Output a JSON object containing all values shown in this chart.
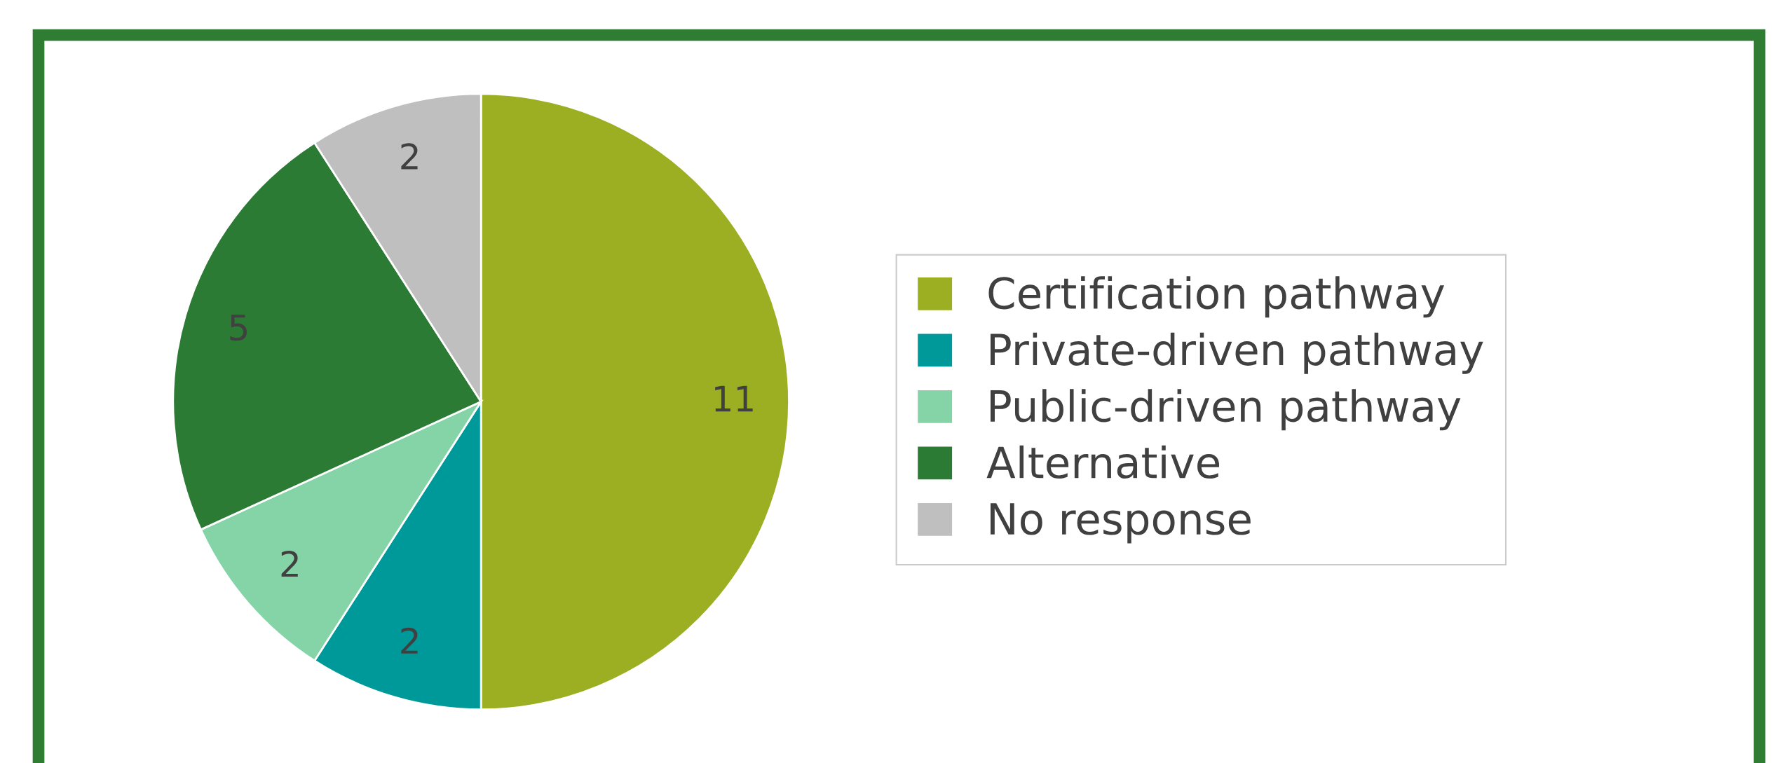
{
  "chart_data": {
    "type": "pie",
    "categories": [
      "Certification pathway",
      "Private-driven pathway",
      "Public-driven pathway",
      "Alternative",
      "No response"
    ],
    "values": [
      11,
      2,
      2,
      5,
      2
    ],
    "colors": [
      "#9caf23",
      "#009999",
      "#84d4a8",
      "#2b7b35",
      "#bfbfbf"
    ],
    "data_labels": true,
    "legend": "right"
  }
}
